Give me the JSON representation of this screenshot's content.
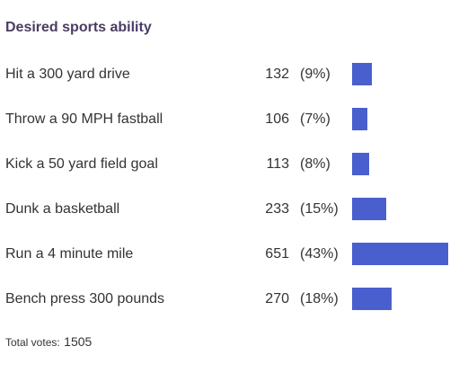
{
  "poll": {
    "title": "Desired sports ability",
    "bar_color": "#4a5fce",
    "total_label": "Total votes:",
    "total_value": "1505"
  },
  "chart_data": {
    "type": "bar",
    "orientation": "horizontal",
    "title": "Desired sports ability",
    "categories": [
      "Hit a 300 yard drive",
      "Throw a 90 MPH fastball",
      "Kick a 50 yard field goal",
      "Dunk a basketball",
      "Run a 4 minute mile",
      "Bench press 300 pounds"
    ],
    "values": [
      132,
      106,
      113,
      233,
      651,
      270
    ],
    "percent_labels": [
      "(9%)",
      "(7%)",
      "(8%)",
      "(15%)",
      "(43%)",
      "(18%)"
    ],
    "total": 1505,
    "grid": false,
    "legend": "none"
  }
}
